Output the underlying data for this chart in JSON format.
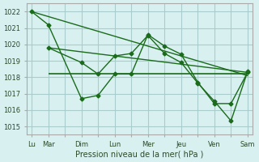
{
  "background_color": "#d8f0f0",
  "grid_color": "#aacccc",
  "line_color": "#1a6b1a",
  "marker_color": "#1a6b1a",
  "xlabel": "Pression niveau de la mer( hPa )",
  "ylim": [
    1014.5,
    1022.5
  ],
  "yticks": [
    1015,
    1016,
    1017,
    1018,
    1019,
    1020,
    1021,
    1022
  ],
  "xtick_labels": [
    "Lu",
    "Mar",
    "",
    "Dim",
    "",
    "Lun",
    "",
    "Mer",
    "",
    "Jeu",
    "",
    "Ven",
    "",
    "Sam"
  ],
  "xtick_positions": [
    0,
    1,
    2,
    3,
    4,
    5,
    6,
    7,
    8,
    9,
    10,
    11,
    12,
    13
  ],
  "series1_x": [
    0,
    1,
    3,
    4,
    5,
    6,
    7,
    8,
    9,
    10,
    11,
    12,
    13
  ],
  "series1_y": [
    1022.0,
    1021.2,
    1016.7,
    1016.9,
    1018.2,
    1018.2,
    1020.6,
    1019.9,
    1019.4,
    1017.7,
    1016.4,
    1016.4,
    1018.3
  ],
  "series2_x": [
    1,
    3,
    4,
    5,
    6,
    7,
    8,
    9,
    10,
    11,
    12,
    13
  ],
  "series2_y": [
    1019.8,
    1018.9,
    1018.2,
    1019.3,
    1019.45,
    1020.55,
    1019.45,
    1018.9,
    1017.65,
    1016.55,
    1015.35,
    1018.35
  ],
  "trendline_x": [
    0,
    13
  ],
  "trendline_y": [
    1022.0,
    1018.1
  ],
  "trendline2_x": [
    1,
    13
  ],
  "trendline2_y": [
    1019.8,
    1018.3
  ],
  "hline_y": 1018.2,
  "hline_x_start": 1,
  "hline_x_end": 13
}
